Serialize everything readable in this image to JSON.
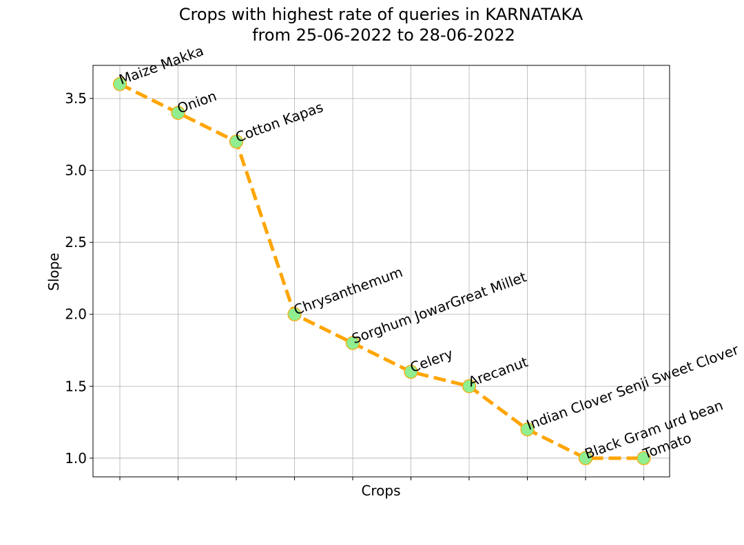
{
  "chart_data": {
    "type": "line",
    "title_line1": "Crops with highest rate of queries in KARNATAKA",
    "title_line2": "from 25-06-2022 to 28-06-2022",
    "xlabel": "Crops",
    "ylabel": "Slope",
    "categories": [
      "Maize Makka",
      "Onion",
      "Cotton Kapas",
      "Chrysanthemum",
      "Sorghum JowarGreat Millet",
      "Celery",
      "Arecanut",
      "Indian Clover Senji Sweet Clover",
      "Black Gram urd bean",
      "Tomato"
    ],
    "values": [
      3.6,
      3.4,
      3.2,
      2.0,
      1.8,
      1.6,
      1.5,
      1.2,
      1.0,
      1.0
    ],
    "ylim": [
      0.87,
      3.73
    ],
    "yticks": [
      1.0,
      1.5,
      2.0,
      2.5,
      3.0,
      3.5
    ],
    "ytick_labels": [
      "1.0",
      "1.5",
      "2.0",
      "2.5",
      "3.0",
      "3.5"
    ],
    "grid": true,
    "line_style": "dashed",
    "colors": {
      "line": "#FFA500",
      "marker_fill": "#90EE90",
      "marker_edge": "#FFA500",
      "grid": "#b0b0b0"
    }
  }
}
